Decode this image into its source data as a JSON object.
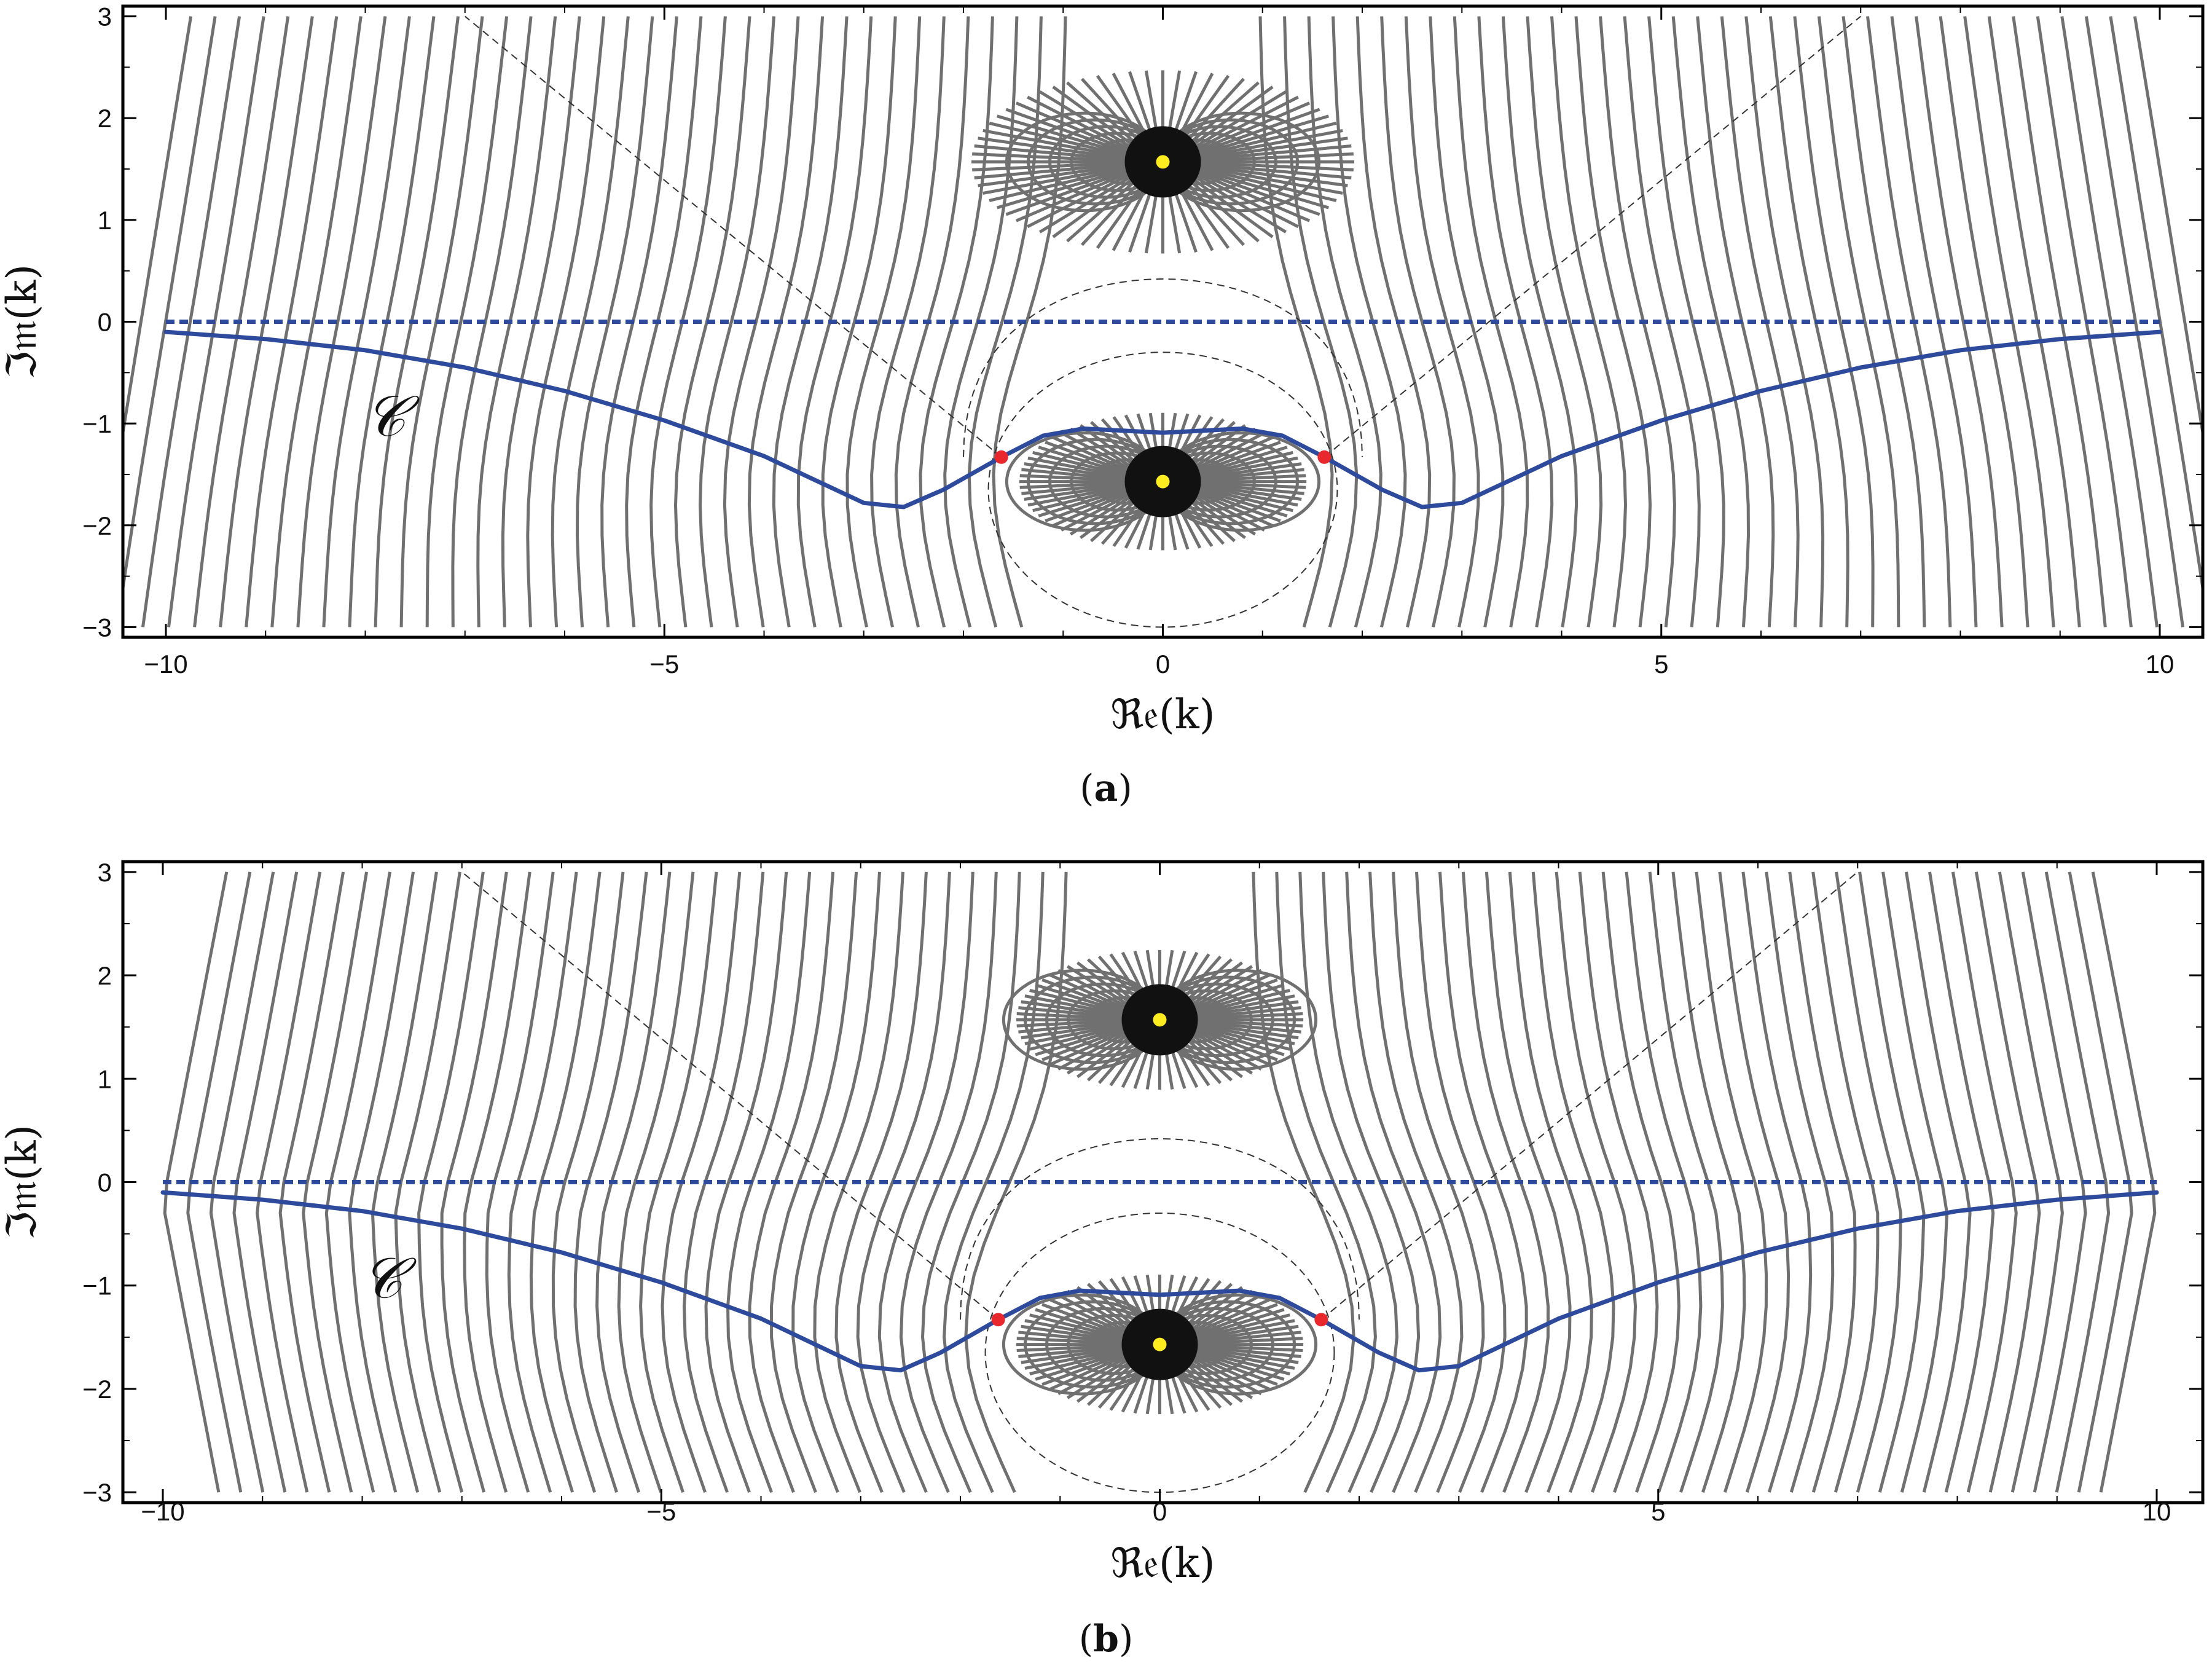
{
  "chart_data": [
    {
      "type": "line",
      "panel": "a",
      "caption_label": "a",
      "xlabel": "ℜ𝔢(k)",
      "ylabel": "ℑ𝔪(k)",
      "xlim": [
        -10,
        10
      ],
      "ylim": [
        -3.1,
        3.1
      ],
      "xticks": [
        "−10",
        "−5",
        "0",
        "5",
        "10"
      ],
      "xtick_values": [
        -10,
        -5,
        0,
        5,
        10
      ],
      "yticks": [
        "−3",
        "−2",
        "−1",
        "0",
        "1",
        "2",
        "3"
      ],
      "ytick_values": [
        -3,
        -2,
        -1,
        0,
        1,
        2,
        3
      ],
      "annotation": "𝒞",
      "annotation_pos": [
        -7.8,
        -1.0
      ],
      "poles": [
        [
          0,
          1.57
        ],
        [
          0,
          -1.57
        ]
      ],
      "saddle_points": [
        [
          -1.62,
          -1.33
        ],
        [
          1.62,
          -1.33
        ]
      ],
      "series": [
        {
          "role": "contour C",
          "style": "solid",
          "color": "#2e4a9c",
          "x": [
            -10,
            -9,
            -8,
            -7,
            -6,
            -5,
            -4,
            -3.5,
            -3,
            -2.6,
            -2.2,
            -1.62,
            -1.2,
            -0.8,
            -0.4,
            0,
            0.4,
            0.8,
            1.2,
            1.62,
            2.2,
            2.6,
            3,
            3.5,
            4,
            5,
            6,
            7,
            8,
            9,
            10
          ],
          "y": [
            -0.1,
            -0.17,
            -0.28,
            -0.45,
            -0.68,
            -0.97,
            -1.32,
            -1.55,
            -1.78,
            -1.82,
            -1.65,
            -1.33,
            -1.12,
            -1.05,
            -1.07,
            -1.09,
            -1.07,
            -1.05,
            -1.12,
            -1.33,
            -1.65,
            -1.82,
            -1.78,
            -1.55,
            -1.32,
            -0.97,
            -0.68,
            -0.45,
            -0.28,
            -0.17,
            -0.1
          ]
        },
        {
          "role": "real axis",
          "style": "dashed",
          "color": "#2e4a9c",
          "x": [
            -10,
            10
          ],
          "y": [
            0,
            0
          ]
        }
      ],
      "colors": {
        "contour": "#2e4a9c",
        "field_lines": "#707070",
        "pole": "#ffec20",
        "saddle": "#e8282c"
      }
    },
    {
      "type": "line",
      "panel": "b",
      "caption_label": "b",
      "xlabel": "ℜ𝔢(k)",
      "ylabel": "ℑ𝔪(k)",
      "xlim": [
        -10,
        10
      ],
      "ylim": [
        -3.1,
        3.1
      ],
      "xticks": [
        "−10",
        "−5",
        "0",
        "5",
        "10"
      ],
      "xtick_values": [
        -10,
        -5,
        0,
        5,
        10
      ],
      "yticks": [
        "−3",
        "−2",
        "−1",
        "0",
        "1",
        "2",
        "3"
      ],
      "ytick_values": [
        -3,
        -2,
        -1,
        0,
        1,
        2,
        3
      ],
      "annotation": "𝒞",
      "annotation_pos": [
        -7.8,
        -1.0
      ],
      "poles": [
        [
          0,
          1.57
        ],
        [
          0,
          -1.57
        ]
      ],
      "saddle_points": [
        [
          -1.62,
          -1.33
        ],
        [
          1.62,
          -1.33
        ]
      ],
      "series": [
        {
          "role": "contour C",
          "style": "solid",
          "color": "#2e4a9c",
          "x": [
            -10,
            -9,
            -8,
            -7,
            -6,
            -5,
            -4,
            -3.5,
            -3,
            -2.6,
            -2.2,
            -1.62,
            -1.2,
            -0.8,
            -0.4,
            0,
            0.4,
            0.8,
            1.2,
            1.62,
            2.2,
            2.6,
            3,
            3.5,
            4,
            5,
            6,
            7,
            8,
            9,
            10
          ],
          "y": [
            -0.1,
            -0.17,
            -0.28,
            -0.45,
            -0.68,
            -0.97,
            -1.32,
            -1.55,
            -1.78,
            -1.82,
            -1.65,
            -1.33,
            -1.12,
            -1.05,
            -1.07,
            -1.09,
            -1.07,
            -1.05,
            -1.12,
            -1.33,
            -1.65,
            -1.82,
            -1.78,
            -1.55,
            -1.32,
            -0.97,
            -0.68,
            -0.45,
            -0.28,
            -0.17,
            -0.1
          ]
        },
        {
          "role": "real axis",
          "style": "dashed",
          "color": "#2e4a9c",
          "x": [
            -10,
            10
          ],
          "y": [
            0,
            0
          ]
        }
      ],
      "colors": {
        "contour": "#2e4a9c",
        "field_lines": "#707070",
        "pole": "#ffec20",
        "saddle": "#e8282c"
      }
    }
  ]
}
